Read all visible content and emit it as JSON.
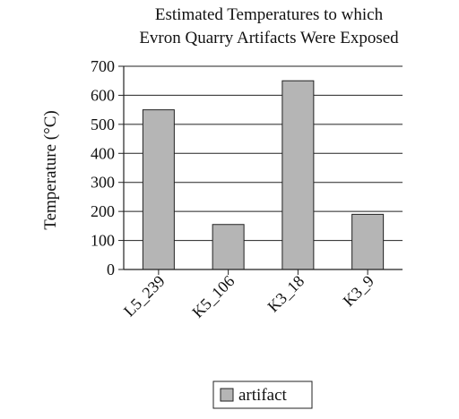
{
  "chart_data": {
    "type": "bar",
    "title": [
      "Estimated Temperatures to which",
      "Evron Quarry Artifacts Were Exposed"
    ],
    "xlabel": "",
    "ylabel": "Temperature (°C)",
    "categories": [
      "L5_239",
      "K5_106",
      "K3_18",
      "K3_9"
    ],
    "series": [
      {
        "name": "artifact",
        "values": [
          550,
          155,
          650,
          190
        ]
      }
    ],
    "ylim": [
      0,
      700
    ],
    "yticks": [
      0,
      100,
      200,
      300,
      400,
      500,
      600,
      700
    ],
    "grid": true,
    "legend_position": "bottom-center",
    "colors": {
      "bar_fill": "#b5b5b5",
      "bar_stroke": "#222222",
      "grid": "#222222"
    }
  }
}
